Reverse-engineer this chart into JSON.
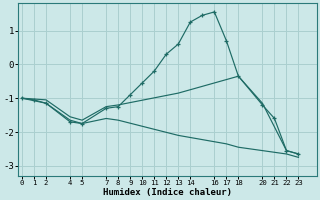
{
  "xlabel": "Humidex (Indice chaleur)",
  "background_color": "#cce8e8",
  "grid_color": "#aacfcf",
  "line_color": "#1e6b65",
  "series": {
    "line1": {
      "x": [
        0,
        1,
        2,
        4,
        5,
        7,
        8,
        9,
        10,
        11,
        12,
        13,
        14,
        15,
        16,
        17,
        18,
        20,
        21,
        22,
        23
      ],
      "y": [
        -1.0,
        -1.05,
        -1.15,
        -1.7,
        -1.75,
        -1.3,
        -1.25,
        -0.9,
        -0.55,
        -0.2,
        0.3,
        0.6,
        1.25,
        1.45,
        1.55,
        0.7,
        -0.35,
        -1.2,
        -1.6,
        -2.55,
        -2.65
      ]
    },
    "line2": {
      "x": [
        0,
        2,
        4,
        5,
        7,
        8,
        13,
        17,
        18,
        20,
        22,
        23
      ],
      "y": [
        -1.0,
        -1.05,
        -1.55,
        -1.65,
        -1.25,
        -1.2,
        -0.85,
        -0.45,
        -0.35,
        -1.15,
        -2.55,
        -2.65
      ]
    },
    "line3": {
      "x": [
        0,
        2,
        4,
        5,
        7,
        8,
        13,
        17,
        18,
        20,
        22,
        23
      ],
      "y": [
        -1.0,
        -1.15,
        -1.65,
        -1.75,
        -1.6,
        -1.65,
        -2.1,
        -2.35,
        -2.45,
        -2.55,
        -2.65,
        -2.75
      ]
    }
  },
  "xticks": [
    0,
    1,
    2,
    4,
    5,
    7,
    8,
    9,
    10,
    11,
    12,
    13,
    14,
    16,
    17,
    18,
    20,
    21,
    22,
    23
  ],
  "yticks": [
    -3,
    -2,
    -1,
    0,
    1
  ],
  "xlim": [
    -0.3,
    24.5
  ],
  "ylim": [
    -3.3,
    1.8
  ]
}
